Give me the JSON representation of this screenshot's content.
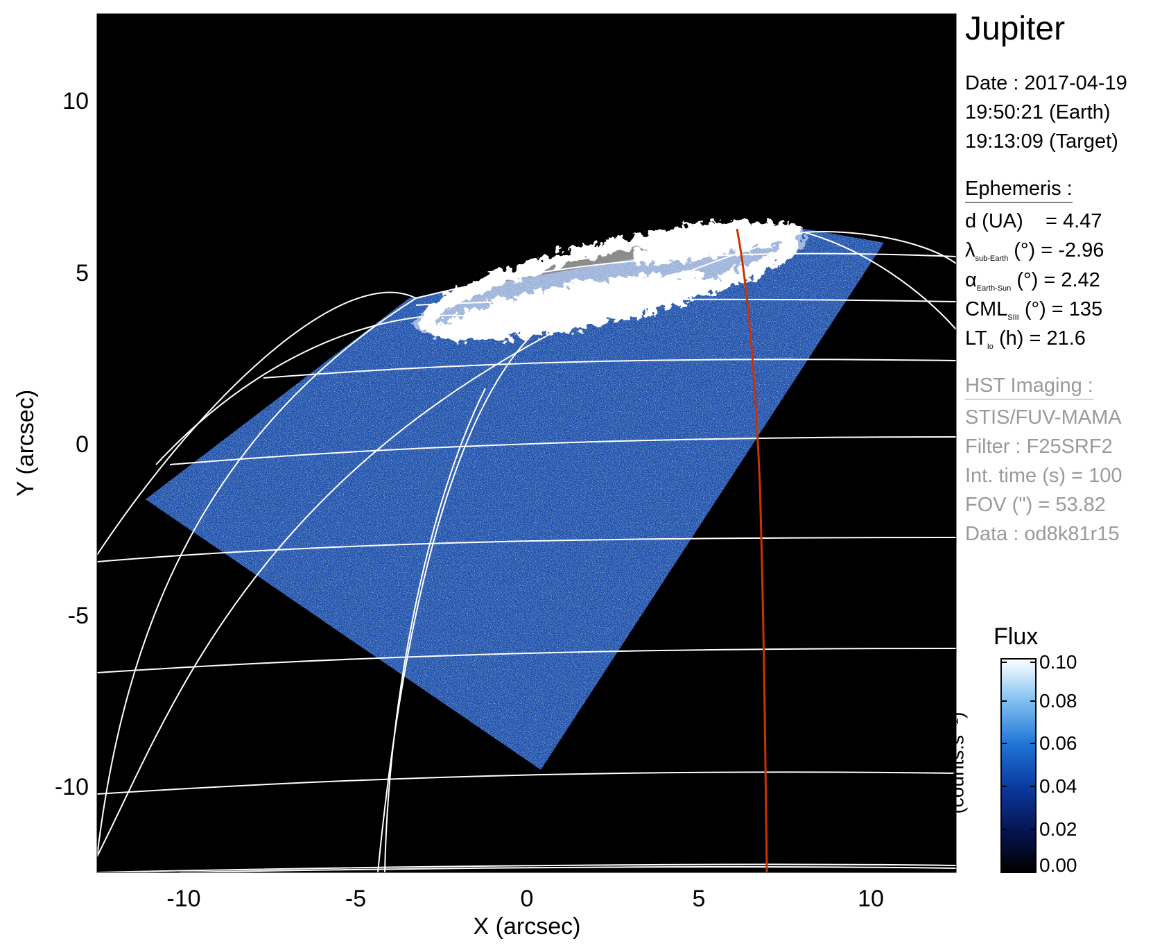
{
  "image": {
    "description_free": true,
    "x_axis": {
      "label": "X (arcsec)",
      "range": [
        -12.5,
        12.5
      ],
      "ticks": [
        "-10",
        "-5",
        "0",
        "5",
        "10"
      ]
    },
    "y_axis": {
      "label": "Y (arcsec)",
      "range": [
        -12.5,
        12.5
      ],
      "ticks": [
        "10",
        "5",
        "0",
        "-5",
        "-10"
      ]
    },
    "colors": {
      "background": "#000000",
      "grid": "#ffffff",
      "meridian_highlight": "#cc3300",
      "aurora": "#ffffff",
      "emission": "#2f78d8"
    }
  },
  "panel": {
    "title": "Jupiter",
    "date_line": "Date : 2017-04-19",
    "earth_time": "19:50:21 (Earth)",
    "target_time": "19:13:09 (Target)",
    "ephemeris_header": "Ephemeris :",
    "ephem": {
      "d_label": "d (UA)",
      "d_value": "= 4.47",
      "lat_symbol": "λ",
      "lat_sub": "sub-Earth",
      "lat_rest": "(°) = -2.96",
      "alpha_symbol": "α",
      "alpha_sub": "Earth-Sun",
      "alpha_rest": "(°) = 2.42",
      "cml_symbol": "CML",
      "cml_sub": "SIII",
      "cml_rest": "(°) = 135",
      "lt_symbol": "LT",
      "lt_sub": "Io",
      "lt_rest": "(h) = 21.6"
    },
    "hst_header": "HST Imaging :",
    "instrument": "STIS/FUV-MAMA",
    "filter": "Filter : F25SRF2",
    "int_time": "Int. time (s) = 100",
    "fov": "FOV (\") = 53.82",
    "data_id": "Data : od8k81r15"
  },
  "colorbar": {
    "title": "Flux",
    "unit": "(counts.s⁻¹)",
    "ticks": [
      "0.10",
      "0.08",
      "0.06",
      "0.04",
      "0.02",
      "0.00"
    ]
  }
}
